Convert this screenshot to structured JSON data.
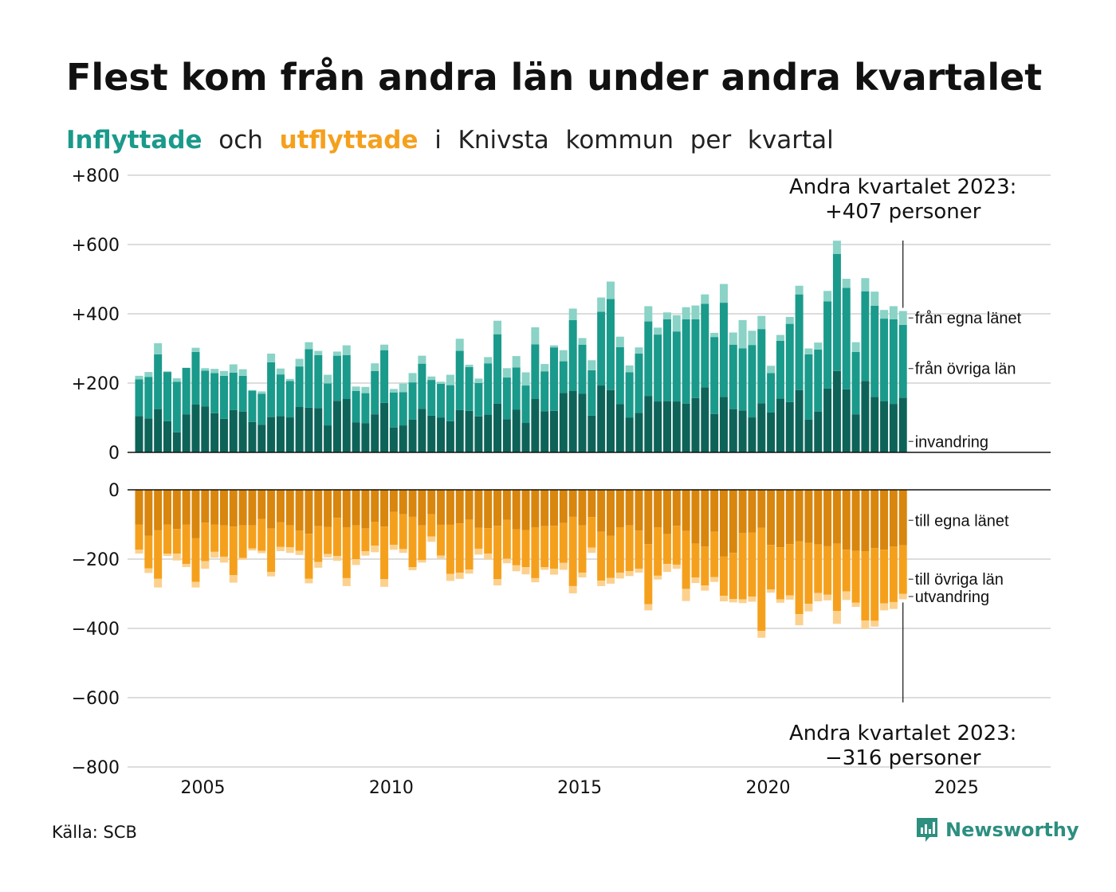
{
  "title": "Flest kom från andra län under andra kvartalet",
  "subtitle": {
    "in_word": "Inflyttade",
    "and_word": "och",
    "out_word": "utflyttade",
    "rest_words": [
      "i",
      "Knivsta",
      "kommun",
      "per",
      "kvartal"
    ]
  },
  "source": "Källa: SCB",
  "logo": {
    "text": "Newsworthy",
    "icon": "newsworthy-logo-icon"
  },
  "colors": {
    "in_own": "#0e6359",
    "in_other": "#1a9a8b",
    "in_immig": "#8ad3c6",
    "out_own": "#d8860e",
    "out_other": "#f5a01d",
    "out_emig": "#fcd18e",
    "grid": "#dddddd",
    "text": "#111111"
  },
  "chart_data": {
    "type": "bar",
    "stacked": true,
    "x_label": "",
    "y_label": "",
    "x_ticks": [
      "2005",
      "2010",
      "2015",
      "2020",
      "2025"
    ],
    "x_range": [
      2003.0,
      2027.5
    ],
    "grid": true,
    "top_panel": {
      "ylim": [
        0,
        800
      ],
      "y_ticks": [
        {
          "value": 0,
          "label": "0"
        },
        {
          "value": 200,
          "label": "+200"
        },
        {
          "value": 400,
          "label": "+400"
        },
        {
          "value": 600,
          "label": "+600"
        },
        {
          "value": 800,
          "label": "+800"
        }
      ],
      "legend_labels": [
        "invandring",
        "från övriga län",
        "från egna länet"
      ],
      "annotation": {
        "line1": "Andra kvartalet 2023:",
        "line2": "+407 personer"
      },
      "series": [
        {
          "name": "från egna länet",
          "values": [
            105,
            98,
            125,
            90,
            58,
            110,
            138,
            133,
            113,
            97,
            122,
            118,
            88,
            80,
            102,
            105,
            101,
            131,
            129,
            128,
            78,
            149,
            154,
            87,
            84,
            110,
            143,
            72,
            78,
            95,
            126,
            106,
            100,
            90,
            122,
            120,
            104,
            109,
            141,
            96,
            123,
            85,
            154,
            119,
            120,
            172,
            177,
            169,
            106,
            193,
            180,
            139,
            100,
            114,
            163,
            147,
            148,
            147,
            141,
            157,
            188,
            111,
            160,
            125,
            121,
            101,
            142,
            115,
            155,
            145,
            180,
            95,
            118,
            184,
            235,
            182,
            110,
            206,
            160,
            148,
            140,
            158
          ]
        },
        {
          "name": "från övriga län",
          "values": [
            106,
            120,
            158,
            142,
            146,
            134,
            152,
            103,
            116,
            124,
            108,
            103,
            90,
            89,
            158,
            120,
            105,
            117,
            169,
            153,
            121,
            130,
            127,
            90,
            87,
            125,
            152,
            101,
            96,
            107,
            130,
            103,
            98,
            104,
            171,
            126,
            96,
            148,
            200,
            120,
            122,
            108,
            158,
            115,
            183,
            91,
            205,
            142,
            131,
            213,
            263,
            165,
            131,
            171,
            215,
            193,
            236,
            202,
            243,
            227,
            241,
            222,
            272,
            186,
            179,
            209,
            214,
            114,
            167,
            226,
            276,
            188,
            179,
            252,
            338,
            293,
            180,
            259,
            263,
            238,
            244,
            210
          ]
        },
        {
          "name": "invandring",
          "values": [
            10,
            14,
            32,
            2,
            10,
            0,
            12,
            7,
            12,
            14,
            24,
            19,
            2,
            7,
            25,
            17,
            6,
            22,
            20,
            12,
            25,
            12,
            28,
            13,
            18,
            22,
            16,
            10,
            25,
            27,
            23,
            10,
            6,
            30,
            35,
            7,
            13,
            18,
            39,
            27,
            33,
            38,
            49,
            21,
            6,
            32,
            33,
            19,
            29,
            41,
            50,
            30,
            20,
            18,
            44,
            20,
            20,
            47,
            35,
            40,
            27,
            12,
            54,
            35,
            82,
            41,
            38,
            21,
            17,
            20,
            25,
            17,
            20,
            30,
            38,
            26,
            28,
            38,
            41,
            25,
            38,
            40
          ]
        }
      ]
    },
    "bottom_panel": {
      "ylim": [
        -800,
        0
      ],
      "y_ticks": [
        {
          "value": 0,
          "label": "0"
        },
        {
          "value": -200,
          "label": "−200"
        },
        {
          "value": -400,
          "label": "−400"
        },
        {
          "value": -600,
          "label": "−600"
        },
        {
          "value": -800,
          "label": "−800"
        }
      ],
      "legend_labels": [
        "till egna länet",
        "till övriga län",
        "utvandring"
      ],
      "annotation": {
        "line1": "Andra kvartalet 2023:",
        "line2": "−316 personer"
      },
      "series": [
        {
          "name": "till egna länet",
          "values": [
            -100,
            -133,
            -117,
            -100,
            -113,
            -100,
            -140,
            -95,
            -100,
            -103,
            -106,
            -103,
            -103,
            -84,
            -112,
            -94,
            -103,
            -118,
            -127,
            -105,
            -107,
            -81,
            -108,
            -103,
            -112,
            -92,
            -106,
            -64,
            -70,
            -78,
            -103,
            -70,
            -101,
            -101,
            -97,
            -86,
            -110,
            -111,
            -104,
            -87,
            -114,
            -116,
            -108,
            -105,
            -104,
            -96,
            -78,
            -103,
            -79,
            -121,
            -133,
            -108,
            -103,
            -118,
            -157,
            -108,
            -128,
            -104,
            -119,
            -155,
            -164,
            -121,
            -192,
            -182,
            -125,
            -123,
            -110,
            -159,
            -166,
            -157,
            -149,
            -153,
            -158,
            -163,
            -155,
            -173,
            -176,
            -177,
            -168,
            -173,
            -164,
            -160
          ]
        },
        {
          "name": "till övriga län",
          "values": [
            -73,
            -94,
            -140,
            -84,
            -71,
            -114,
            -126,
            -111,
            -79,
            -90,
            -140,
            -94,
            -66,
            -92,
            -125,
            -71,
            -63,
            -58,
            -130,
            -103,
            -78,
            -110,
            -147,
            -97,
            -65,
            -69,
            -152,
            -95,
            -101,
            -145,
            -100,
            -65,
            -89,
            -142,
            -142,
            -144,
            -60,
            -73,
            -154,
            -112,
            -104,
            -107,
            -147,
            -118,
            -124,
            -115,
            -200,
            -136,
            -88,
            -141,
            -121,
            -131,
            -132,
            -110,
            -173,
            -140,
            -86,
            -112,
            -167,
            -98,
            -112,
            -131,
            -114,
            -133,
            -191,
            -185,
            -297,
            -129,
            -150,
            -148,
            -210,
            -176,
            -140,
            -140,
            -195,
            -120,
            -150,
            -200,
            -210,
            -155,
            -160,
            -140
          ]
        },
        {
          "name": "utvandring",
          "values": [
            -11,
            -13,
            -25,
            -7,
            -20,
            -9,
            -16,
            -22,
            -17,
            -17,
            -22,
            -5,
            -6,
            -7,
            -13,
            -12,
            -16,
            -12,
            -13,
            -17,
            -10,
            -14,
            -23,
            -17,
            -13,
            -19,
            -22,
            -14,
            -11,
            -9,
            -7,
            -15,
            -9,
            -20,
            -18,
            -12,
            -17,
            -17,
            -18,
            -13,
            -17,
            -21,
            -12,
            -8,
            -17,
            -20,
            -21,
            -14,
            -15,
            -16,
            -17,
            -17,
            -14,
            -11,
            -18,
            -11,
            -23,
            -12,
            -35,
            -16,
            -15,
            -14,
            -16,
            -10,
            -11,
            -15,
            -20,
            -9,
            -10,
            -12,
            -32,
            -22,
            -24,
            -16,
            -37,
            -25,
            -12,
            -24,
            -17,
            -20,
            -20,
            -16
          ]
        }
      ]
    }
  }
}
